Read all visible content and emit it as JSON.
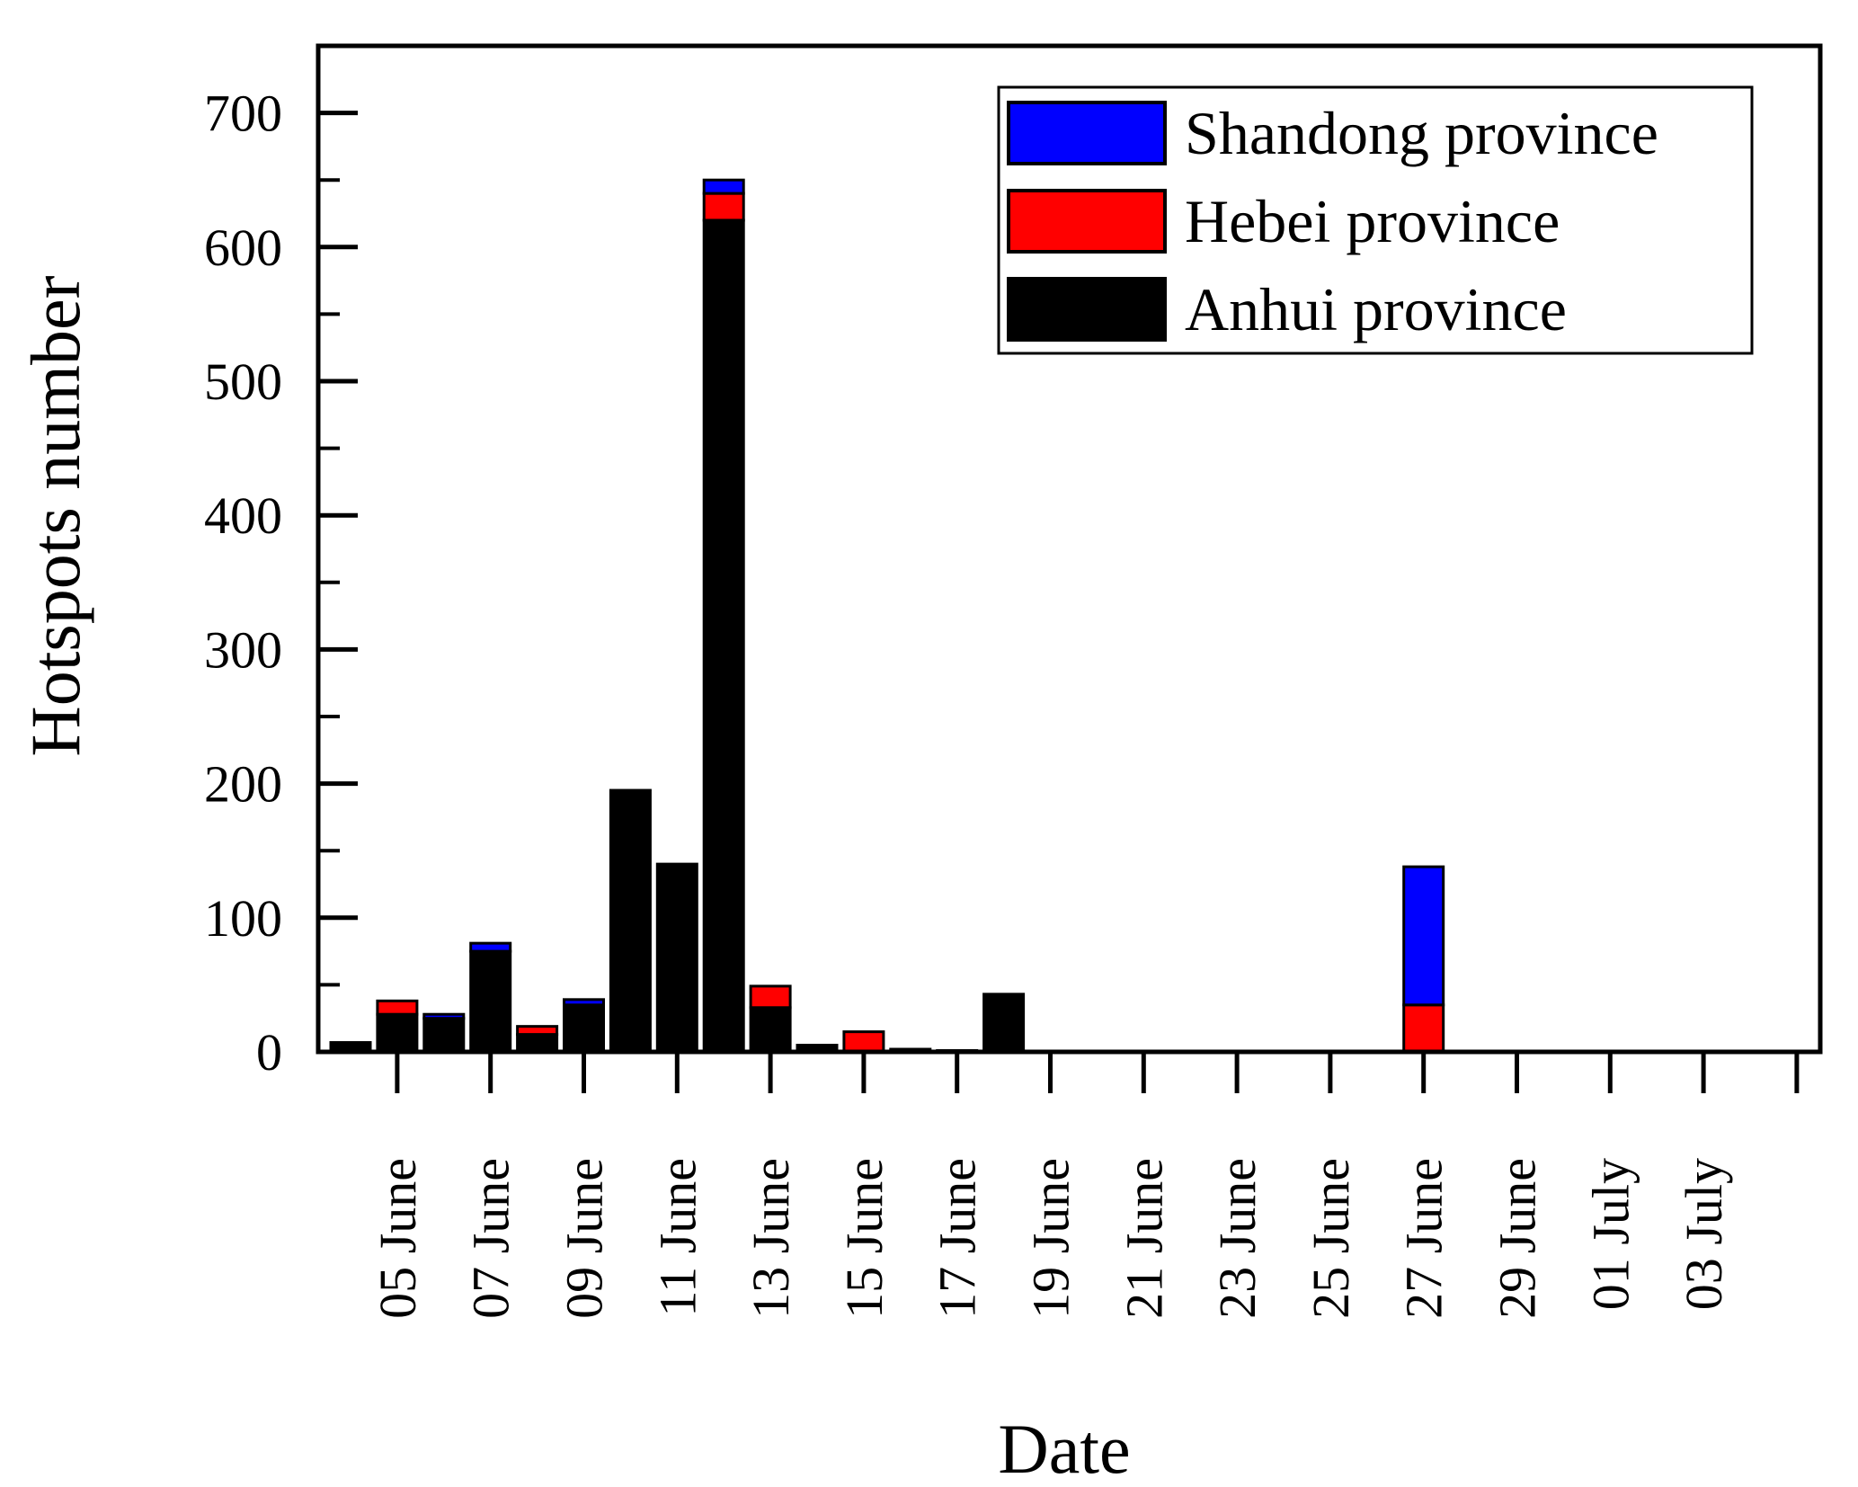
{
  "chart_data": {
    "type": "bar",
    "stacked": true,
    "xlabel": "Date",
    "ylabel": "Hotspots number",
    "ylim": [
      0,
      750
    ],
    "y_major_ticks": [
      0,
      100,
      200,
      300,
      400,
      500,
      600,
      700
    ],
    "y_minor_ticks": [
      50,
      150,
      250,
      350,
      450,
      550,
      650
    ],
    "x_tick_labels": [
      "05 June",
      "07 June",
      "09 June",
      "11 June",
      "13 June",
      "15 June",
      "17 June",
      "19 June",
      "21 June",
      "23 June",
      "25 June",
      "27 June",
      "29 June",
      "01 July",
      "03 July"
    ],
    "categories": [
      "04 June",
      "05 June",
      "06 June",
      "07 June",
      "08 June",
      "09 June",
      "10 June",
      "11 June",
      "12 June",
      "13 June",
      "14 June",
      "15 June",
      "16 June",
      "17 June",
      "18 June",
      "19 June",
      "20 June",
      "21 June",
      "22 June",
      "23 June",
      "24 June",
      "25 June",
      "26 June",
      "27 June",
      "28 June",
      "29 June",
      "30 June",
      "01 July",
      "02 July",
      "03 July",
      "04 July"
    ],
    "series": [
      {
        "name": "Anhui province",
        "color": "#000000",
        "values": [
          7,
          28,
          25,
          75,
          13,
          35,
          195,
          140,
          620,
          33,
          3,
          0,
          2,
          1,
          43,
          0,
          0,
          0,
          0,
          0,
          0,
          0,
          0,
          0,
          0,
          0,
          0,
          0,
          0,
          0,
          0
        ]
      },
      {
        "name": "Hebei province",
        "color": "#ff0000",
        "values": [
          0,
          10,
          0,
          0,
          6,
          0,
          0,
          0,
          20,
          16,
          2,
          15,
          0,
          0,
          0,
          0,
          0,
          0,
          0,
          0,
          0,
          0,
          0,
          35,
          0,
          0,
          0,
          0,
          0,
          0,
          0
        ]
      },
      {
        "name": "Shandong province",
        "color": "#0000ff",
        "values": [
          0,
          0,
          3,
          6,
          0,
          4,
          0,
          0,
          10,
          0,
          0,
          0,
          0,
          0,
          0,
          0,
          0,
          0,
          0,
          0,
          0,
          0,
          0,
          103,
          0,
          0,
          0,
          0,
          0,
          0,
          0
        ]
      }
    ],
    "legend_order": [
      "Shandong province",
      "Hebei province",
      "Anhui province"
    ],
    "legend_position": "top-right",
    "grid": false
  }
}
